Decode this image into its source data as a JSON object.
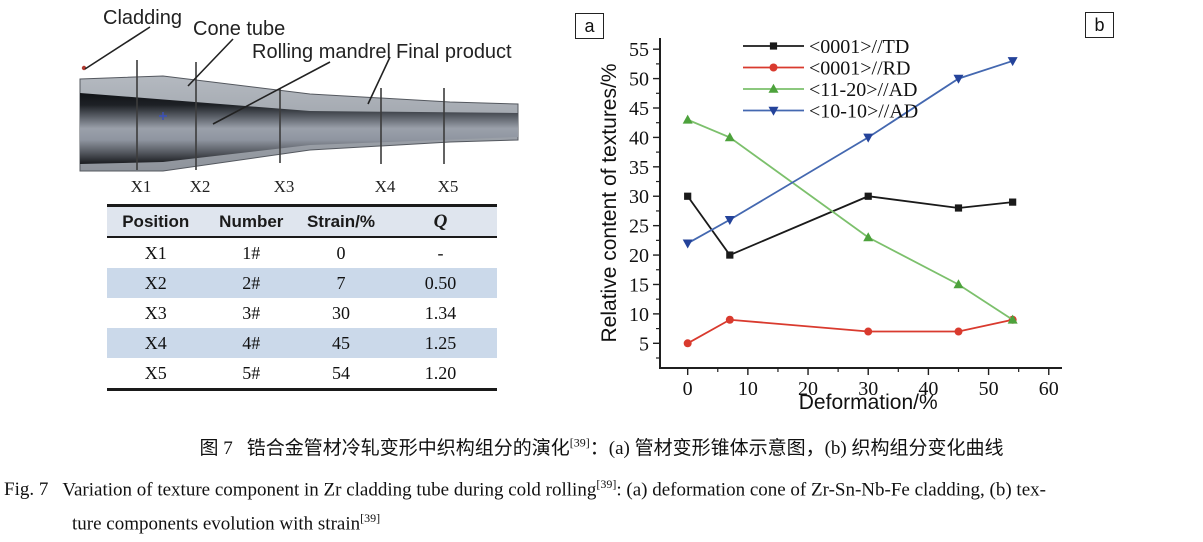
{
  "panel_a": {
    "label": "a",
    "diagram": {
      "labels": {
        "cladding": "Cladding",
        "cone_tube": "Cone tube",
        "rolling_mandrel": "Rolling mandrel",
        "final_product": "Final product"
      },
      "sections": [
        "X1",
        "X2",
        "X3",
        "X4",
        "X5"
      ]
    },
    "table": {
      "headers": [
        "Position",
        "Number",
        "Strain/%",
        "Q"
      ],
      "rows": [
        [
          "X1",
          "1#",
          "0",
          "-"
        ],
        [
          "X2",
          "2#",
          "7",
          "0.50"
        ],
        [
          "X3",
          "3#",
          "30",
          "1.34"
        ],
        [
          "X4",
          "4#",
          "45",
          "1.25"
        ],
        [
          "X5",
          "5#",
          "54",
          "1.20"
        ]
      ],
      "shaded_row_color": "#cbd9ea"
    }
  },
  "panel_b": {
    "label": "b"
  },
  "chart_data": {
    "type": "line",
    "title": "",
    "xlabel": "Deformation/%",
    "ylabel": "Relative content of textures/%",
    "x": [
      0,
      7,
      30,
      45,
      54
    ],
    "xlim": [
      -4.6,
      62.2
    ],
    "ylim": [
      0.8,
      56.9
    ],
    "xticks": [
      0,
      10,
      20,
      30,
      40,
      50,
      60
    ],
    "yticks": [
      5,
      10,
      15,
      20,
      25,
      30,
      35,
      40,
      45,
      50,
      55
    ],
    "grid": false,
    "legend_position": "top-left-inside",
    "series": [
      {
        "name": "<0001>//TD",
        "color": "#1a1a1a",
        "marker": "square",
        "values": [
          30,
          20,
          30,
          28,
          29
        ]
      },
      {
        "name": "<0001>//RD",
        "color": "#d93a2e",
        "marker": "circle",
        "values": [
          5,
          9,
          7,
          7,
          9
        ]
      },
      {
        "name": "<11-20>//AD",
        "color": "#7cc06c",
        "marker": "triangle-up",
        "marker_color": "#4da23c",
        "values": [
          43,
          40,
          23,
          15,
          9
        ]
      },
      {
        "name": "<10-10>//AD",
        "color": "#4468b0",
        "marker": "triangle-down",
        "marker_color": "#24439a",
        "values": [
          22,
          26,
          40,
          50,
          53
        ]
      }
    ]
  },
  "captions": {
    "zh": {
      "fig": "图 7",
      "main": "锆合金管材冷轧变形中织构组分的演化",
      "ref": "[39]",
      "rest": "：(a) 管材变形锥体示意图，(b) 织构组分变化曲线"
    },
    "en1": {
      "fig": "Fig. 7",
      "main": "Variation of texture component in Zr cladding tube during cold rolling",
      "ref": "[39]",
      "rest": ": (a) deformation cone of Zr-Sn-Nb-Fe cladding, (b) tex-"
    },
    "en2": {
      "main": "ture components evolution with strain",
      "ref": "[39]"
    }
  }
}
